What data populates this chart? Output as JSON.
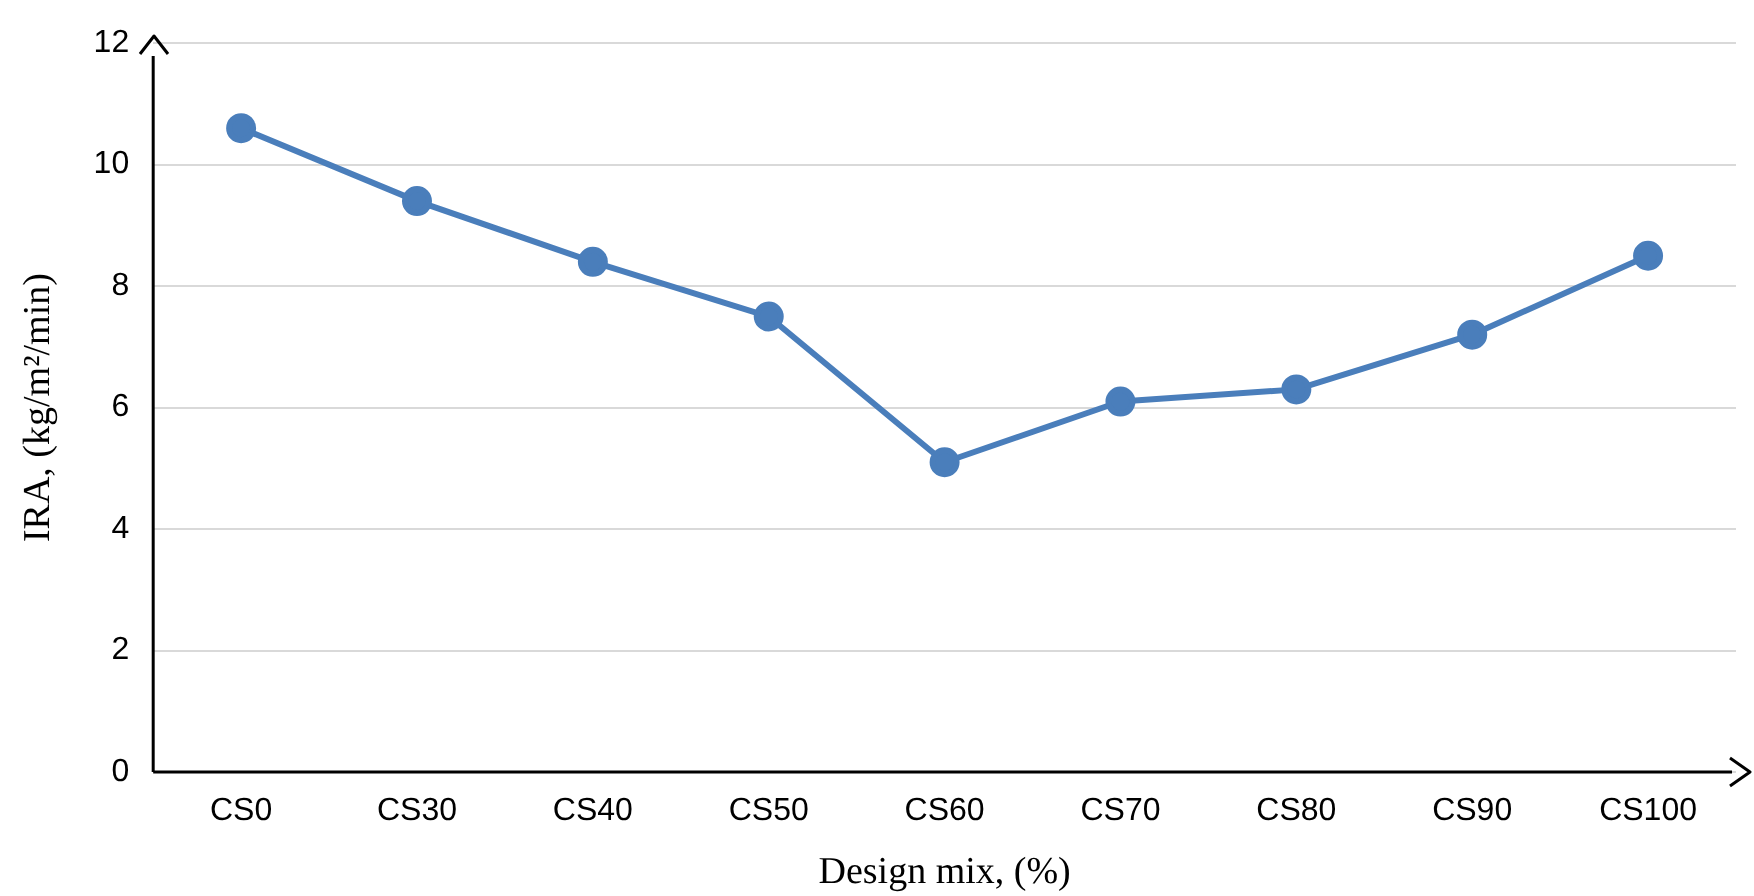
{
  "chart_data": {
    "type": "line",
    "xlabel": "Design mix, (%)",
    "ylabel": "IRA, (kg/m²/min)",
    "categories": [
      "CS0",
      "CS30",
      "CS40",
      "CS50",
      "CS60",
      "CS70",
      "CS80",
      "CS90",
      "CS100"
    ],
    "series": [
      {
        "color": "#4a7ebb",
        "values": [
          10.6,
          9.4,
          8.4,
          7.5,
          5.1,
          6.1,
          6.3,
          7.2,
          8.5
        ]
      }
    ],
    "ylim": [
      0,
      12
    ],
    "yticks": [
      0,
      2,
      4,
      6,
      8,
      10,
      12
    ],
    "grid": "y",
    "legend": false,
    "marker": "circle",
    "line_style": "solid"
  }
}
